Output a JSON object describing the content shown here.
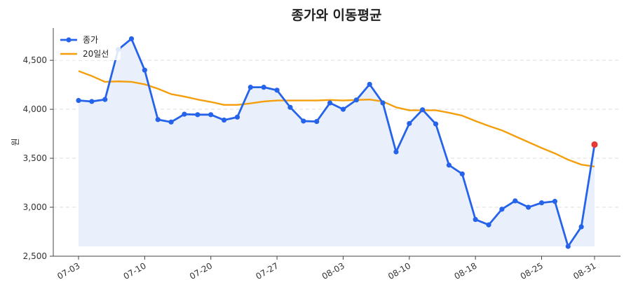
{
  "chart_data": {
    "type": "line",
    "title": "종가와 이동평균",
    "xlabel": "",
    "ylabel": "원",
    "ylim": [
      2500,
      4830
    ],
    "yticks": [
      2500,
      3000,
      3500,
      4000,
      4500
    ],
    "ytick_labels": [
      "2,500",
      "3,000",
      "3,500",
      "4,000",
      "4,500"
    ],
    "xtick_labels": [
      "07-03",
      "07-10",
      "07-20",
      "07-27",
      "08-03",
      "08-10",
      "08-18",
      "08-25",
      "08-31"
    ],
    "xtick_index": [
      0,
      5,
      10,
      15,
      20,
      25,
      30,
      35,
      39
    ],
    "grid": "y-dashed",
    "legend_position": "top-left",
    "colors": {
      "close": "#2563eb",
      "ma20": "#f59e0b",
      "fill": "#e8eefb",
      "last_point": "#e53935",
      "grid": "#dddddd",
      "axis": "#444444"
    },
    "fill_baseline": 2600,
    "series": [
      {
        "name": "종가",
        "type": "line-markers",
        "values": [
          4090,
          4080,
          4100,
          4610,
          4720,
          4400,
          3895,
          3870,
          3950,
          3945,
          3945,
          3890,
          3920,
          4225,
          4225,
          4195,
          4020,
          3880,
          3875,
          4065,
          4000,
          4095,
          4255,
          4065,
          3565,
          3855,
          3995,
          3850,
          3430,
          3340,
          2875,
          2820,
          2980,
          3065,
          3000,
          3045,
          3060,
          2600,
          2800,
          3640
        ]
      },
      {
        "name": "20일선",
        "type": "line",
        "values": [
          4390,
          4340,
          4280,
          4285,
          4280,
          4255,
          4210,
          4155,
          4130,
          4100,
          4075,
          4045,
          4045,
          4060,
          4080,
          4090,
          4090,
          4090,
          4090,
          4095,
          4090,
          4095,
          4100,
          4080,
          4020,
          3990,
          3990,
          3990,
          3965,
          3935,
          3880,
          3830,
          3785,
          3725,
          3665,
          3605,
          3550,
          3485,
          3435,
          3415
        ]
      }
    ]
  }
}
